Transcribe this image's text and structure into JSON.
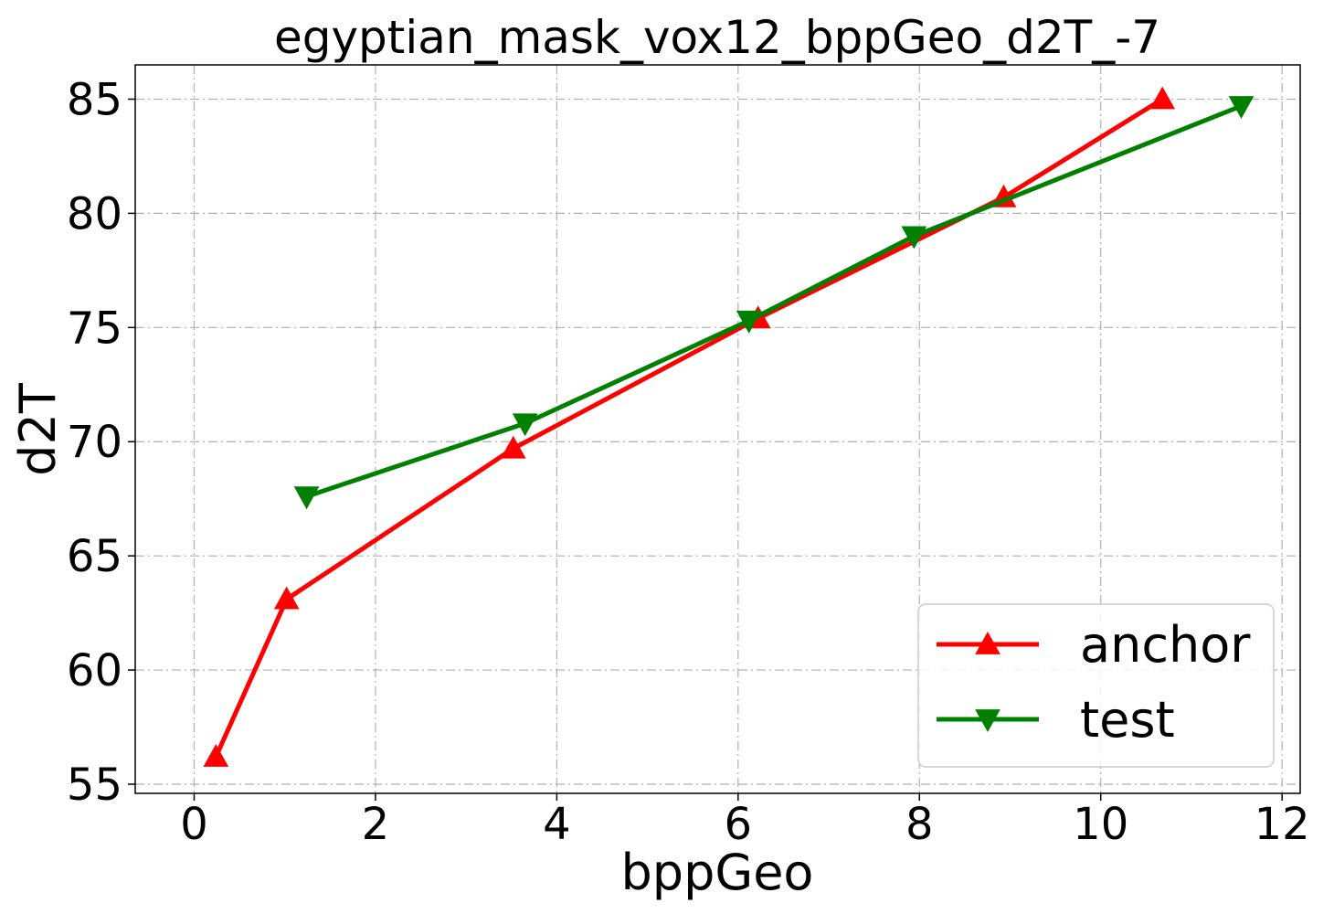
{
  "chart_data": {
    "type": "line",
    "title": "egyptian_mask_vox12_bppGeo_d2T_-7",
    "xlabel": "bppGeo",
    "ylabel": "d2T",
    "xlim": [
      -0.65,
      12.2
    ],
    "ylim": [
      54.6,
      86.5
    ],
    "xticks": [
      0,
      2,
      4,
      6,
      8,
      10,
      12
    ],
    "yticks": [
      55,
      60,
      65,
      70,
      75,
      80,
      85
    ],
    "grid": true,
    "legend_position": "lower-right",
    "series": [
      {
        "name": "anchor",
        "color": "#ff0000",
        "marker": "triangle-up",
        "x": [
          0.24,
          1.02,
          3.52,
          6.22,
          8.93,
          10.68
        ],
        "y": [
          56.2,
          63.1,
          69.7,
          75.4,
          80.7,
          85.0
        ]
      },
      {
        "name": "test",
        "color": "#008000",
        "marker": "triangle-down",
        "x": [
          1.24,
          3.65,
          6.12,
          7.94,
          11.55
        ],
        "y": [
          67.6,
          70.8,
          75.3,
          79.0,
          84.7
        ]
      }
    ]
  }
}
